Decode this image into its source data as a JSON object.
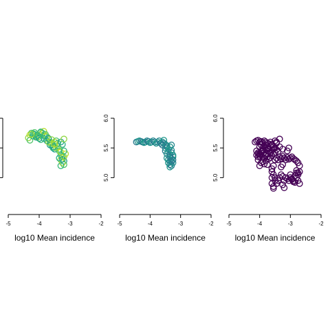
{
  "chart_data": [
    {
      "type": "scatter",
      "title": "",
      "xlabel": "log10 Mean incidence",
      "ylabel": "",
      "xlim": [
        -5,
        -2
      ],
      "ylim": [
        4.75,
        6.0
      ],
      "xticks": [
        "-5",
        "-4",
        "-3",
        "-2"
      ],
      "yticks": [],
      "yticks_visible_count": 3,
      "grid": false,
      "colors": [
        "#8fd744",
        "#b5de2b",
        "#52c569",
        "#35b779",
        "#2ab07f",
        "#1fa187"
      ],
      "series": [
        {
          "x": [
            -4.35,
            -4.3,
            -4.25,
            -4.2,
            -4.15,
            -4.1,
            -4.05,
            -4.0,
            -3.95,
            -3.9,
            -3.85,
            -3.8,
            -3.75,
            -3.7,
            -3.65,
            -3.6,
            -3.55,
            -3.5,
            -3.45,
            -3.4,
            -3.35,
            -3.3,
            -3.25,
            -3.2,
            -3.3,
            -3.25,
            -3.2,
            -3.3,
            -3.35,
            -3.25,
            -3.2,
            -3.15,
            -4.3,
            -4.2,
            -4.1,
            -4.0,
            -3.9,
            -3.85,
            -3.8,
            -3.95,
            -4.05,
            -3.75,
            -3.6,
            -3.5,
            -3.45,
            -3.4,
            -3.55,
            -3.65,
            -3.7,
            -3.3,
            -3.35,
            -3.2,
            -3.25,
            -3.3,
            -3.2,
            -4.25,
            -4.15,
            -3.95,
            -3.85,
            -3.7,
            -3.6,
            -3.5
          ],
          "y": [
            5.67,
            5.72,
            5.75,
            5.74,
            5.73,
            5.7,
            5.68,
            5.72,
            5.76,
            5.75,
            5.72,
            5.7,
            5.69,
            5.65,
            5.6,
            5.55,
            5.5,
            5.48,
            5.5,
            5.52,
            5.45,
            5.38,
            5.35,
            5.28,
            5.3,
            5.25,
            5.22,
            5.2,
            5.33,
            5.31,
            5.35,
            5.4,
            5.63,
            5.7,
            5.68,
            5.66,
            5.74,
            5.78,
            5.73,
            5.64,
            5.71,
            5.62,
            5.58,
            5.6,
            5.62,
            5.58,
            5.52,
            5.55,
            5.6,
            5.43,
            5.48,
            5.45,
            5.56,
            5.6,
            5.65,
            5.73,
            5.76,
            5.77,
            5.66,
            5.66,
            5.64,
            5.56
          ]
        }
      ]
    },
    {
      "type": "scatter",
      "title": "",
      "xlabel": "log10 Mean incidence",
      "ylabel": "",
      "xlim": [
        -5,
        -2
      ],
      "ylim": [
        4.75,
        6.0
      ],
      "xticks": [
        "-5",
        "-4",
        "-3",
        "-2"
      ],
      "yticks": [
        "5.0",
        "5.5",
        "6.0"
      ],
      "grid": false,
      "colors": [
        "#2a788e",
        "#25858e",
        "#1f968b",
        "#21908d"
      ],
      "series": [
        {
          "x": [
            -4.45,
            -4.4,
            -4.35,
            -4.3,
            -4.25,
            -4.2,
            -4.15,
            -4.1,
            -4.05,
            -4.0,
            -3.95,
            -3.9,
            -3.85,
            -3.8,
            -3.75,
            -3.7,
            -3.65,
            -3.6,
            -3.55,
            -3.5,
            -3.45,
            -3.4,
            -3.35,
            -3.3,
            -3.5,
            -3.45,
            -3.4,
            -3.35,
            -3.3,
            -3.45,
            -3.4,
            -3.35,
            -3.3,
            -3.25,
            -3.4,
            -3.35,
            -3.3,
            -3.25,
            -3.35,
            -3.3,
            -3.25,
            -3.5,
            -3.45,
            -3.55,
            -3.6,
            -3.3,
            -3.25,
            -3.3,
            -3.35
          ],
          "y": [
            5.6,
            5.61,
            5.62,
            5.61,
            5.6,
            5.59,
            5.6,
            5.62,
            5.61,
            5.59,
            5.6,
            5.62,
            5.6,
            5.58,
            5.6,
            5.62,
            5.58,
            5.6,
            5.63,
            5.56,
            5.52,
            5.48,
            5.52,
            5.55,
            5.45,
            5.4,
            5.44,
            5.38,
            5.42,
            5.33,
            5.3,
            5.28,
            5.32,
            5.35,
            5.25,
            5.22,
            5.2,
            5.25,
            5.18,
            5.28,
            5.3,
            5.5,
            5.54,
            5.58,
            5.55,
            5.46,
            5.38,
            5.26,
            5.35
          ]
        }
      ]
    },
    {
      "type": "scatter",
      "title": "",
      "xlabel": "log10 Mean incidence",
      "ylabel": "",
      "xlim": [
        -5,
        -2
      ],
      "ylim": [
        4.75,
        6.0
      ],
      "xticks": [
        "-5",
        "-4",
        "-3",
        "-2"
      ],
      "yticks": [
        "5.0",
        "5.5",
        "6.0"
      ],
      "grid": false,
      "colors": [
        "#440154",
        "#481a6c",
        "#472f7d",
        "#414487",
        "#39568c",
        "#31688e",
        "#2a788e"
      ],
      "series": [
        {
          "x": [
            -4.1,
            -4.05,
            -4.0,
            -3.95,
            -3.9,
            -3.85,
            -3.8,
            -3.75,
            -3.7,
            -3.65,
            -3.6,
            -3.55,
            -3.5,
            -3.45,
            -3.4,
            -4.05,
            -4.0,
            -3.95,
            -3.9,
            -3.85,
            -3.8,
            -3.75,
            -3.7,
            -3.65,
            -3.6,
            -3.55,
            -3.5,
            -4.0,
            -3.95,
            -3.9,
            -3.85,
            -3.8,
            -3.75,
            -3.7,
            -3.65,
            -3.6,
            -3.55,
            -4.1,
            -4.05,
            -4.15,
            -4.1,
            -4.05,
            -4.0,
            -3.95,
            -3.9,
            -3.85,
            -3.8,
            -3.75,
            -3.7,
            -3.65,
            -3.6,
            -4.0,
            -3.95,
            -3.9,
            -3.85,
            -3.8,
            -3.75,
            -3.5,
            -3.45,
            -3.4,
            -3.35,
            -3.3,
            -3.25,
            -3.2,
            -3.15,
            -3.1,
            -3.05,
            -3.0,
            -2.95,
            -2.9,
            -2.85,
            -2.8,
            -2.75,
            -2.7,
            -3.6,
            -3.6,
            -3.55,
            -3.5,
            -3.5,
            -3.45,
            -3.4,
            -3.35,
            -3.3,
            -3.25,
            -3.0,
            -3.0,
            -2.95,
            -2.9,
            -2.85,
            -2.8,
            -2.75,
            -2.75,
            -2.8,
            -2.85,
            -3.2,
            -3.15,
            -3.1,
            -3.05,
            -2.95,
            -2.9,
            -2.7,
            -3.55,
            -3.6,
            -3.55,
            -3.25,
            -3.2,
            -3.6,
            -3.55,
            -3.3,
            -3.25,
            -2.8,
            -2.75,
            -2.7,
            -4.05,
            -3.9,
            -3.75,
            -3.6,
            -3.45,
            -3.35,
            -3.5,
            -3.45,
            -3.35,
            -3.25,
            -3.1,
            -3.05
          ],
          "y": [
            5.45,
            5.42,
            5.4,
            5.44,
            5.47,
            5.43,
            5.41,
            5.45,
            5.44,
            5.42,
            5.46,
            5.48,
            5.5,
            5.47,
            5.44,
            5.35,
            5.36,
            5.38,
            5.34,
            5.33,
            5.37,
            5.35,
            5.32,
            5.34,
            5.37,
            5.4,
            5.42,
            5.52,
            5.55,
            5.5,
            5.53,
            5.54,
            5.51,
            5.49,
            5.53,
            5.56,
            5.52,
            5.38,
            5.3,
            5.6,
            5.62,
            5.63,
            5.6,
            5.61,
            5.59,
            5.62,
            5.6,
            5.58,
            5.57,
            5.6,
            5.55,
            5.2,
            5.25,
            5.27,
            5.23,
            5.28,
            5.22,
            5.3,
            5.33,
            5.3,
            5.35,
            5.32,
            5.36,
            5.33,
            5.3,
            5.34,
            5.31,
            5.33,
            5.35,
            5.32,
            5.3,
            5.28,
            5.25,
            5.2,
            5.1,
            5.0,
            5.05,
            5.0,
            4.95,
            4.9,
            4.95,
            5.0,
            5.05,
            5.02,
            5.0,
            5.05,
            4.98,
            4.95,
            4.92,
            5.0,
            4.95,
            5.05,
            5.08,
            5.03,
            4.95,
            5.0,
            4.98,
            4.95,
            4.97,
            4.93,
            4.9,
            4.85,
            4.9,
            4.82,
            4.88,
            4.83,
            5.15,
            5.2,
            5.18,
            5.22,
            5.12,
            5.08,
            5.1,
            5.4,
            5.45,
            5.48,
            5.55,
            5.6,
            5.65,
            5.62,
            5.58,
            5.52,
            5.48,
            5.45,
            5.5
          ]
        }
      ]
    }
  ]
}
